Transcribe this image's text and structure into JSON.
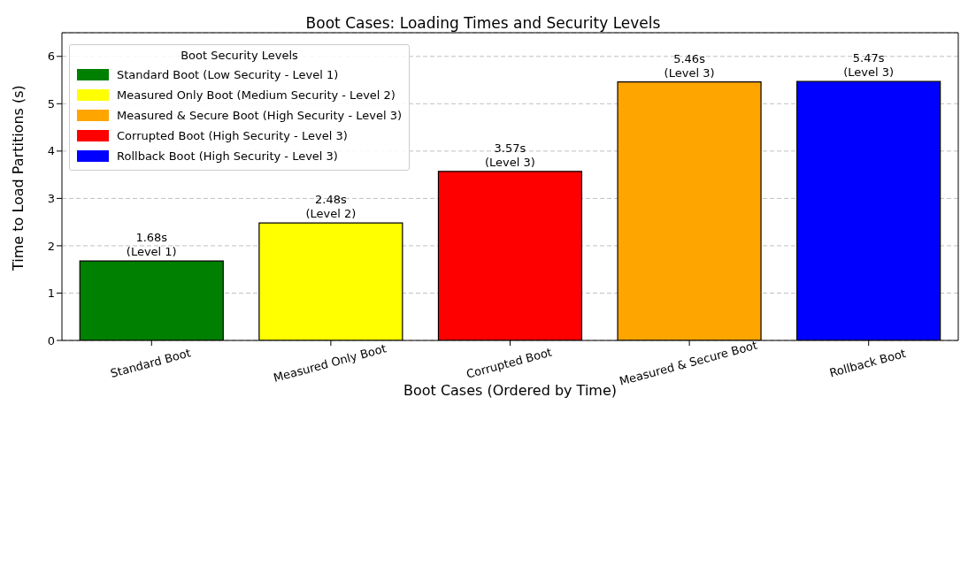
{
  "chart_data": {
    "type": "bar",
    "title": "Boot Cases: Loading Times and Security Levels",
    "xlabel": "Boot Cases (Ordered by Time)",
    "ylabel": "Time to Load Partitions (s)",
    "legend_title": "Boot Security Levels",
    "categories": [
      "Standard Boot",
      "Measured Only Boot",
      "Corrupted Boot",
      "Measured & Secure Boot",
      "Rollback Boot"
    ],
    "stacked": true,
    "series": [
      {
        "name": "Standard Boot (Low Security - Level 1)",
        "color": "#008000",
        "values": [
          1.68,
          null,
          null,
          null,
          null
        ],
        "value_labels": [
          "1.68s\n(Level 1)",
          null,
          null,
          null,
          null
        ]
      },
      {
        "name": "Measured Only Boot (Medium Security - Level 2)",
        "color": "#ffff00",
        "values": [
          null,
          2.48,
          null,
          null,
          null
        ],
        "value_labels": [
          null,
          "2.48s\n(Level 2)",
          null,
          null,
          null
        ]
      },
      {
        "name": "Measured & Secure Boot (High Security - Level 3)",
        "color": "#ffa500",
        "values": [
          null,
          null,
          null,
          5.46,
          null
        ],
        "value_labels": [
          null,
          null,
          null,
          "5.46s\n(Level 3)",
          null
        ]
      },
      {
        "name": "Corrupted Boot (High Security - Level 3)",
        "color": "#ff0000",
        "values": [
          null,
          null,
          3.57,
          null,
          null
        ],
        "value_labels": [
          null,
          null,
          "3.57s\n(Level 3)",
          null,
          null
        ]
      },
      {
        "name": "Rollback Boot (High Security - Level 3)",
        "color": "#0000ff",
        "values": [
          null,
          null,
          null,
          null,
          5.47
        ],
        "value_labels": [
          null,
          null,
          null,
          null,
          "5.47s\n(Level 3)"
        ]
      }
    ],
    "ylim": [
      0,
      6.5
    ],
    "yticks": [
      0,
      1,
      2,
      3,
      4,
      5,
      6
    ],
    "grid": "y",
    "legend": "top left"
  }
}
